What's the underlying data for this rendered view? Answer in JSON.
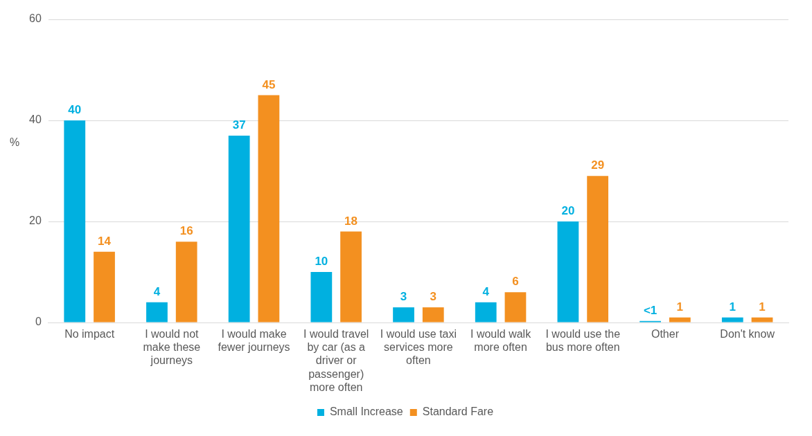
{
  "chart_data": {
    "type": "bar",
    "ylabel": "%",
    "categories": [
      "No impact",
      "I would not make these journeys",
      "I would make fewer journeys",
      "I would travel by car (as a driver or passenger) more often",
      "I would use taxi services more often",
      "I would walk more often",
      "I would use the bus more often",
      "Other",
      "Don't know"
    ],
    "series": [
      {
        "name": "Small Increase",
        "color": "#00b0e0",
        "values": [
          40,
          4,
          37,
          10,
          3,
          4,
          20,
          0.3,
          1
        ],
        "value_labels": [
          "40",
          "4",
          "37",
          "10",
          "3",
          "4",
          "20",
          "<1",
          "1"
        ]
      },
      {
        "name": "Standard Fare",
        "color": "#f39020",
        "values": [
          14,
          16,
          45,
          18,
          3,
          6,
          29,
          1,
          1
        ],
        "value_labels": [
          "14",
          "16",
          "45",
          "18",
          "3",
          "6",
          "29",
          "1",
          "1"
        ]
      }
    ],
    "ylim": [
      0,
      60
    ],
    "yticks": [
      0,
      20,
      40,
      60
    ],
    "grid": "y",
    "legend": "bottom"
  }
}
